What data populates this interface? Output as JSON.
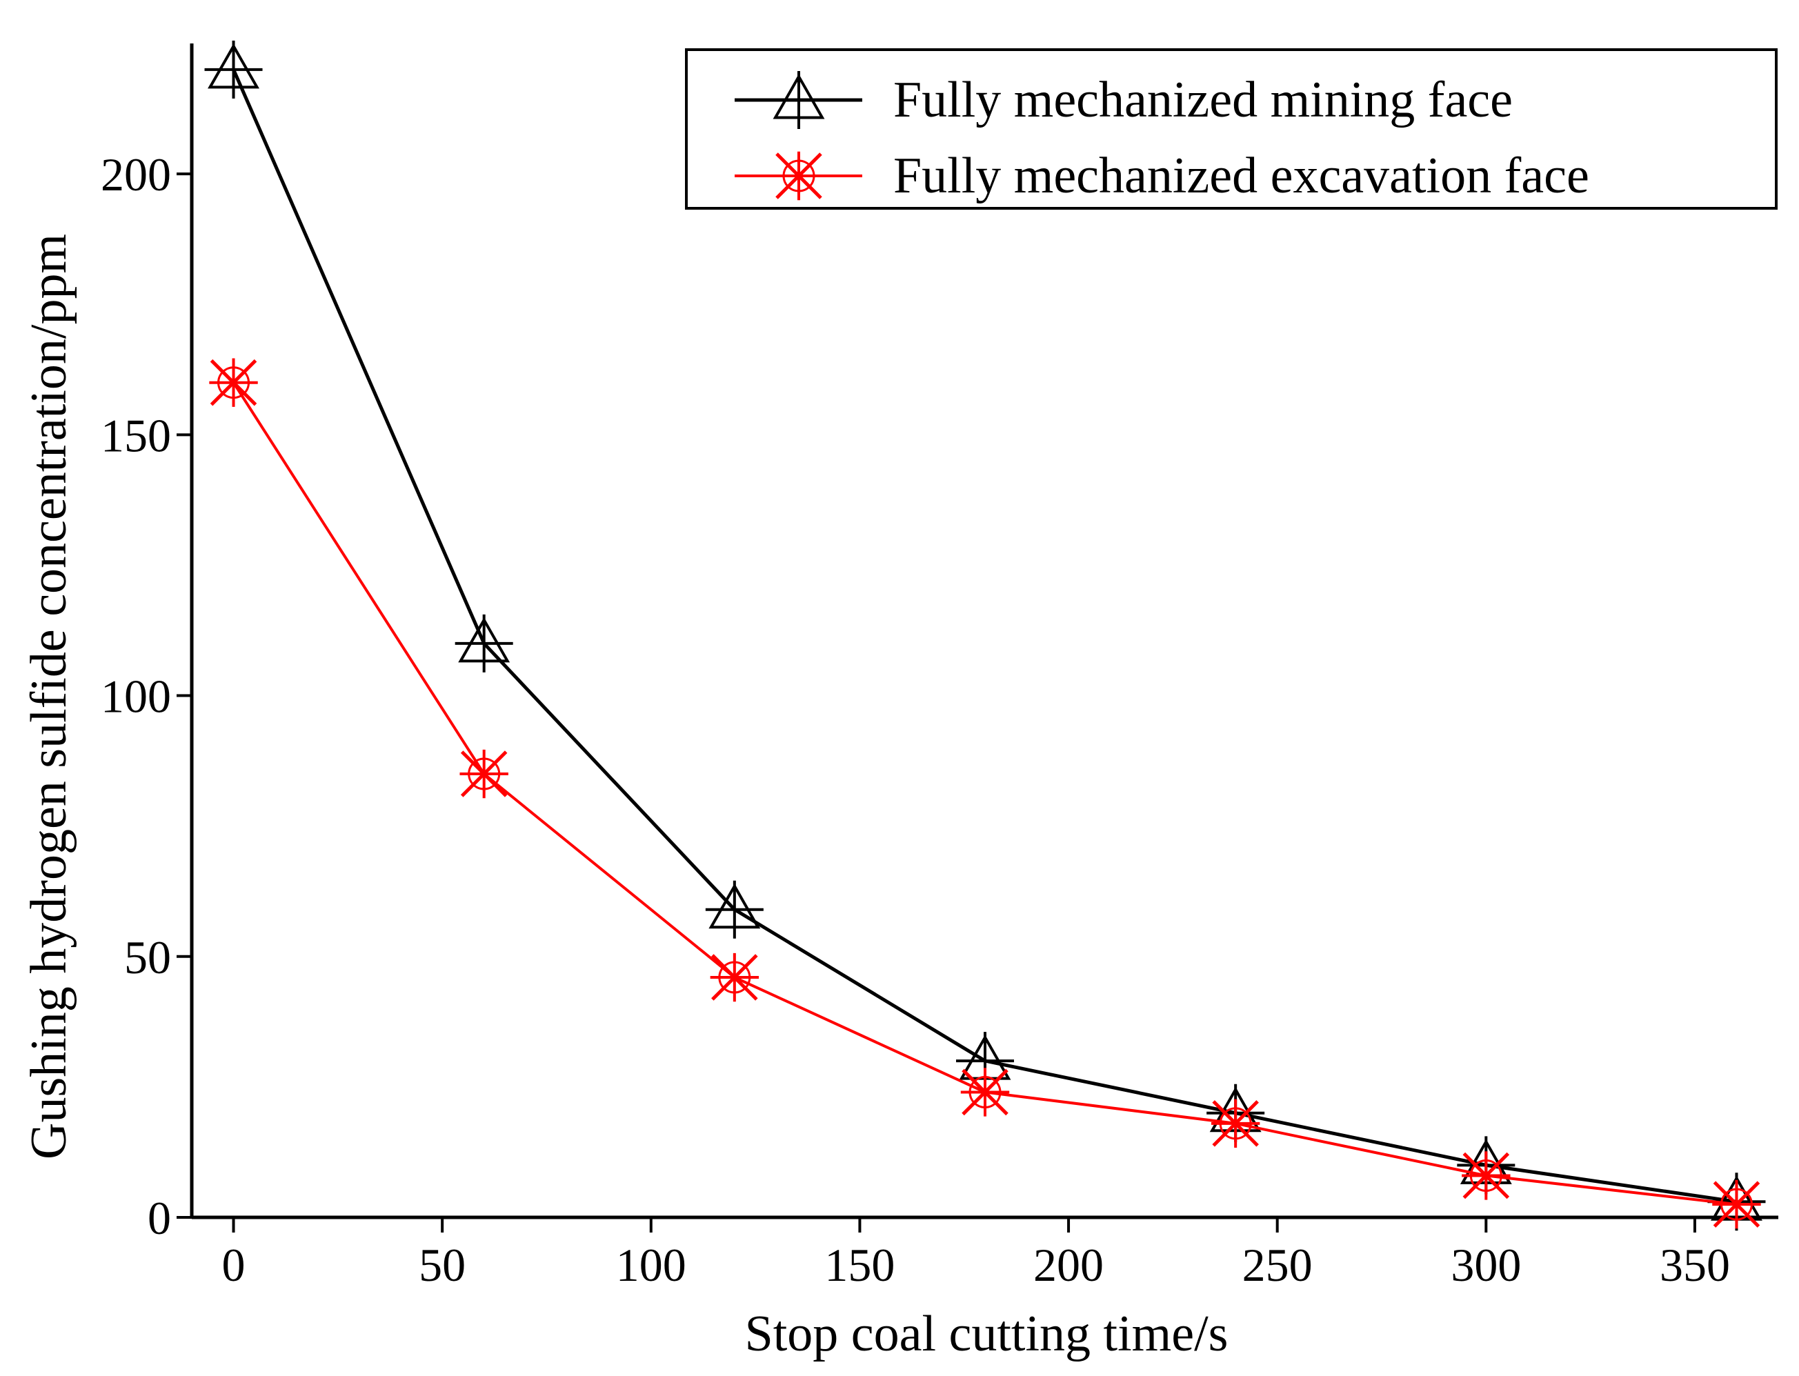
{
  "chart_data": {
    "type": "line",
    "xlabel": "Stop coal cutting time/s",
    "ylabel": "Gushing hydrogen sulfide concentration/ppm",
    "xlim": [
      -10,
      370
    ],
    "ylim": [
      0,
      225
    ],
    "xticks": [
      0,
      50,
      100,
      150,
      200,
      250,
      300,
      350
    ],
    "yticks": [
      0,
      50,
      100,
      150,
      200
    ],
    "grid": false,
    "legend_position": "top-right",
    "x": [
      0,
      60,
      120,
      180,
      240,
      300,
      360
    ],
    "series": [
      {
        "name": "Fully mechanized mining face",
        "values": [
          220,
          110,
          59,
          30,
          20,
          10,
          3
        ],
        "color": "#000000",
        "marker": "triangle-cross"
      },
      {
        "name": "Fully mechanized excavation face",
        "values": [
          160,
          85,
          46,
          24,
          18,
          8,
          2.5
        ],
        "color": "#ff0000",
        "marker": "asterisk-x"
      }
    ]
  }
}
